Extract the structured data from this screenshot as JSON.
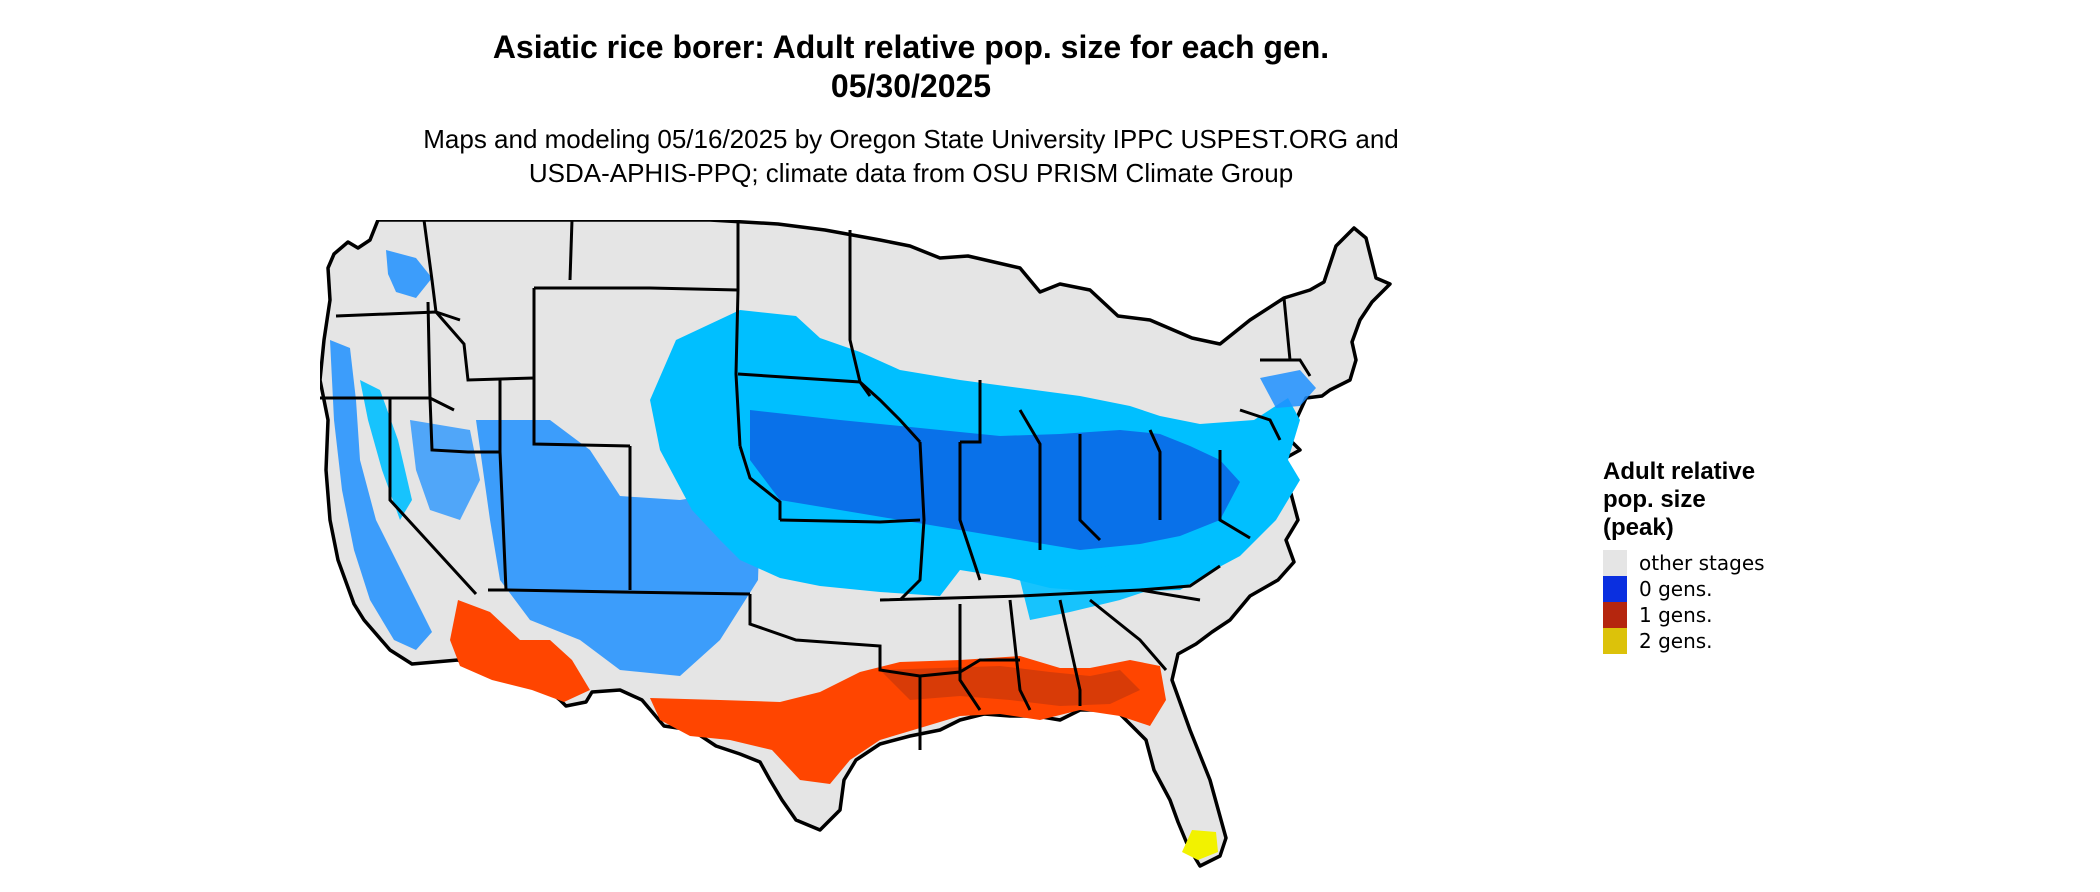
{
  "title": {
    "line1": "Asiatic rice borer: Adult relative pop. size for each gen.",
    "line2": "05/30/2025"
  },
  "subtitle": {
    "line1": "Maps and modeling 05/16/2025 by Oregon State University IPPC USPEST.ORG and",
    "line2": "USDA-APHIS-PPQ; climate data from OSU PRISM Climate Group"
  },
  "legend": {
    "title_lines": [
      "Adult relative",
      "pop. size",
      "(peak)"
    ],
    "items": [
      {
        "label": "other stages",
        "color": "#e5e5e5"
      },
      {
        "label": "0 gens.",
        "color": "#0a2fe0"
      },
      {
        "label": "1 gens.",
        "color": "#b5260e"
      },
      {
        "label": "2 gens.",
        "color": "#dcc20a"
      }
    ]
  },
  "map_colors": {
    "land": "#e5e5e5",
    "gen0_light": "#00bfff",
    "gen0_mid": "#1e90ff",
    "gen0_dark": "#0b63e5",
    "gen1_light": "#ff4500",
    "gen1_dark": "#c8380a",
    "gen2": "#f2f200",
    "border": "#000000"
  }
}
